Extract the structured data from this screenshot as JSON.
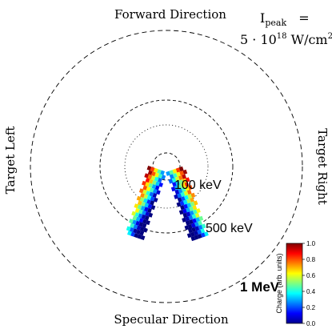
{
  "chart_data": {
    "type": "polar-heatmap",
    "direction_labels": {
      "top": "Forward Direction",
      "bottom": "Specular Direction",
      "left": "Target Left",
      "right": "Target Right"
    },
    "annotation": {
      "line1_symbol": "I",
      "line1_subscript": "peak",
      "line1_rest": " =",
      "line2_prefix": "5 · 10",
      "line2_exponent": "18",
      "line2_unit": " W/cm",
      "line2_unit_exponent": "2"
    },
    "rings": [
      {
        "label": "",
        "style": "dashed"
      },
      {
        "label": "100 keV",
        "style": "dotted"
      },
      {
        "label": "500 keV",
        "style": "dashed"
      },
      {
        "label": "1 MeV",
        "style": "dashed"
      }
    ],
    "colorbar": {
      "label": "Charge (arb. units)",
      "range": [
        0.0,
        1.0
      ],
      "ticks": [
        "0.0",
        "0.2",
        "0.4",
        "0.6",
        "0.8",
        "1.0"
      ],
      "colormap": "jet"
    },
    "lobes": [
      {
        "name": "",
        "angle_deg_from_forward": [
          -158,
          -142
        ],
        "energy_rings": [
          0.12,
          0.86
        ]
      },
      {
        "name": "",
        "angle_deg_from_forward": [
          142,
          158
        ],
        "energy_rings": [
          0.12,
          0.86
        ]
      }
    ]
  }
}
